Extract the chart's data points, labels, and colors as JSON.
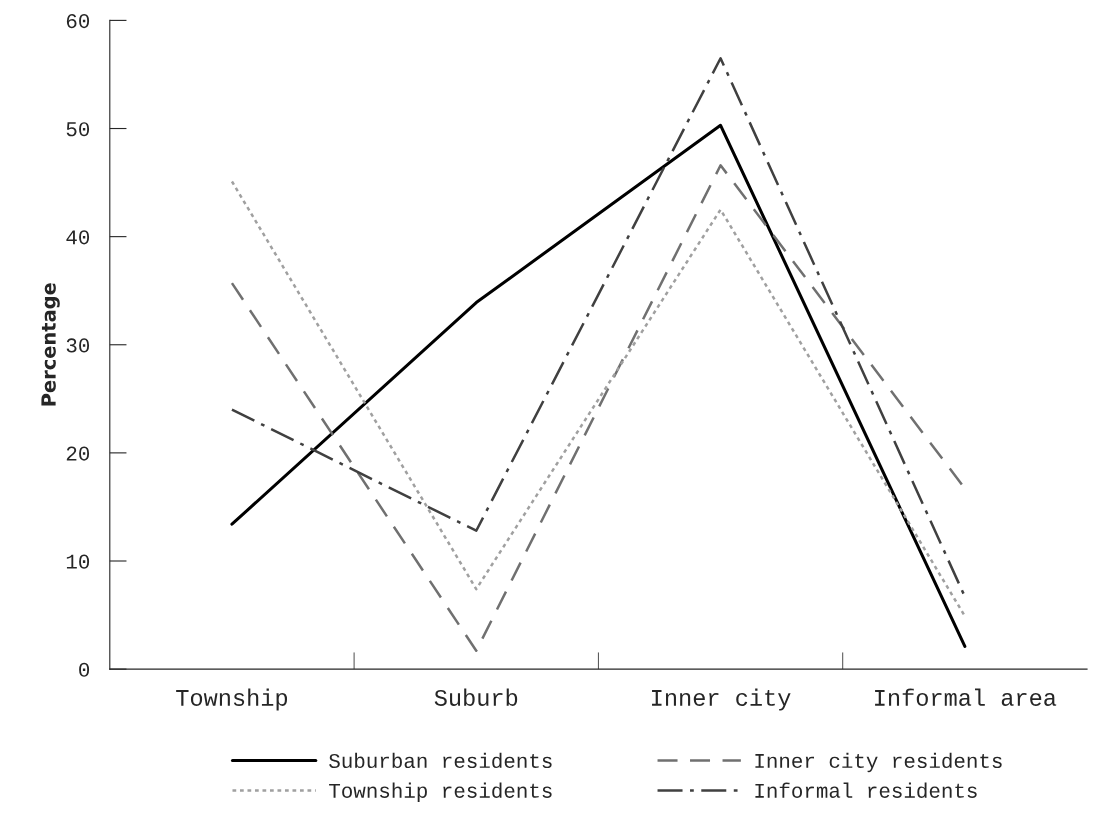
{
  "chart_data": {
    "type": "line",
    "ylabel": "Percentage",
    "categories": [
      "Township",
      "Suburb",
      "Inner city",
      "Informal area"
    ],
    "ylim": [
      0,
      60
    ],
    "yticks": [
      0,
      10,
      20,
      30,
      40,
      50,
      60
    ],
    "grid": false,
    "legend": "bottom",
    "marker": "none",
    "series": [
      {
        "name": "Suburban residents",
        "color": "#000000",
        "line_style": "solid",
        "values": [
          13.4,
          33.9,
          50.3,
          2.1
        ]
      },
      {
        "name": "Inner city residents",
        "color": "#707070",
        "line_style": "dashed",
        "values": [
          35.7,
          1.7,
          46.6,
          16.7
        ]
      },
      {
        "name": "Township residents",
        "color": "#a0a0a0",
        "line_style": "dotted",
        "values": [
          45.1,
          7.4,
          42.5,
          4.9
        ]
      },
      {
        "name": "Informal residents",
        "color": "#404040",
        "line_style": "dashdot",
        "values": [
          24.0,
          12.8,
          56.5,
          6.7
        ]
      }
    ]
  }
}
